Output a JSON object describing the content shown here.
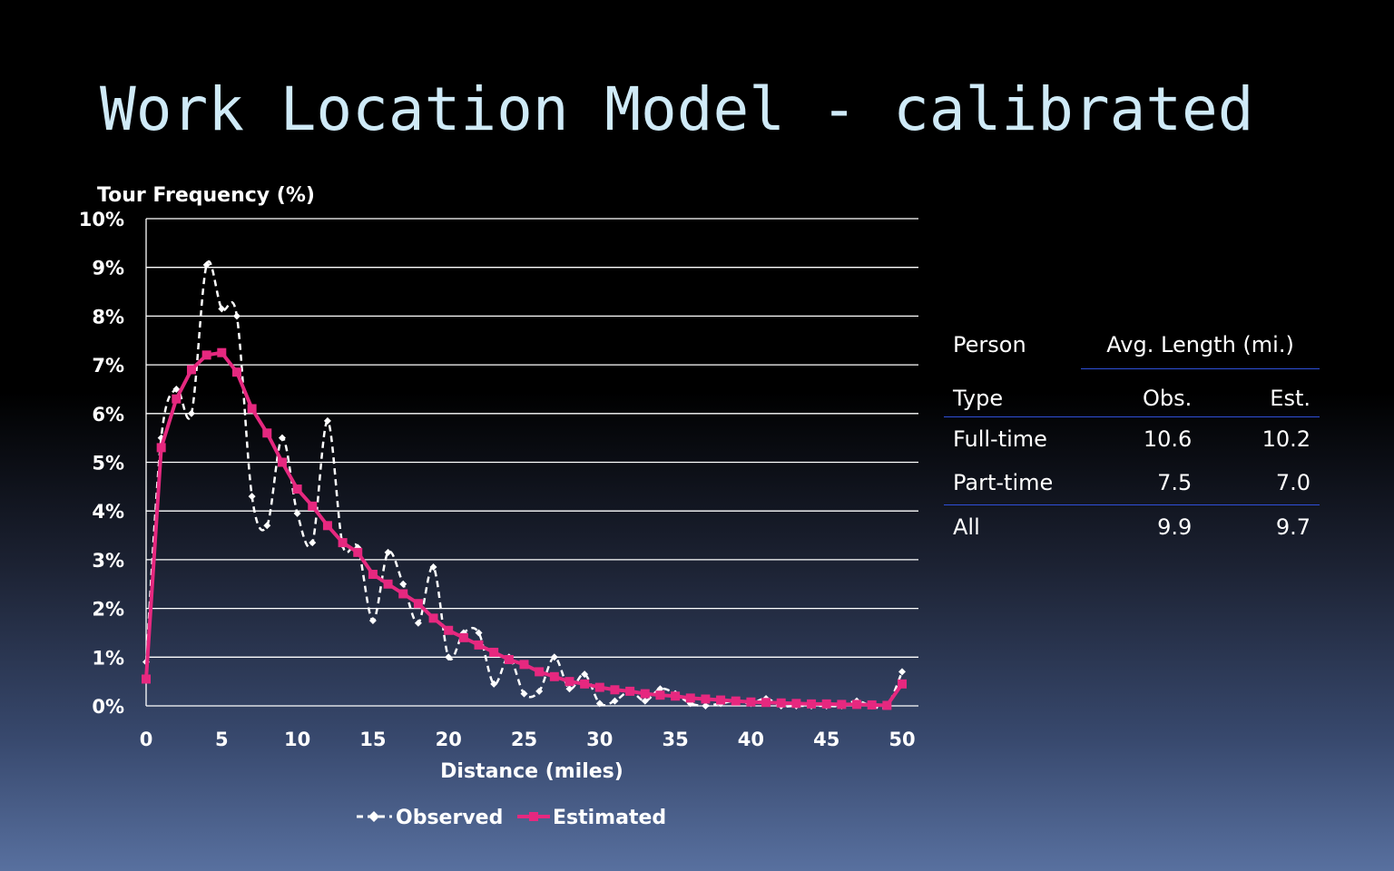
{
  "slide": {
    "title": "Work Location Model - calibrated"
  },
  "chart_data": {
    "type": "line",
    "ylabel": "Tour Frequency (%)",
    "xlabel": "Distance (miles)",
    "xlim": [
      0,
      50
    ],
    "ylim": [
      0,
      10
    ],
    "x_ticks": [
      0,
      5,
      10,
      15,
      20,
      25,
      30,
      35,
      40,
      45,
      50
    ],
    "y_ticks": [
      0,
      1,
      2,
      3,
      4,
      5,
      6,
      7,
      8,
      9,
      10
    ],
    "y_tick_labels": [
      "0%",
      "1%",
      "2%",
      "3%",
      "4%",
      "5%",
      "6%",
      "7%",
      "8%",
      "9%",
      "10%"
    ],
    "grid": "horizontal",
    "legend_position": "bottom",
    "x": [
      0,
      1,
      2,
      3,
      4,
      5,
      6,
      7,
      8,
      9,
      10,
      11,
      12,
      13,
      14,
      15,
      16,
      17,
      18,
      19,
      20,
      21,
      22,
      23,
      24,
      25,
      26,
      27,
      28,
      29,
      30,
      31,
      32,
      33,
      34,
      35,
      36,
      37,
      38,
      39,
      40,
      41,
      42,
      43,
      44,
      45,
      46,
      47,
      48,
      49,
      50
    ],
    "series": [
      {
        "name": "Observed",
        "color": "#ffffff",
        "style": "dashed",
        "marker": "diamond",
        "values": [
          0.9,
          5.5,
          6.5,
          6.0,
          9.05,
          8.15,
          8.0,
          4.3,
          3.7,
          5.5,
          3.95,
          3.35,
          5.85,
          3.3,
          3.25,
          1.75,
          3.15,
          2.5,
          1.7,
          2.85,
          1.0,
          1.5,
          1.5,
          0.45,
          1.0,
          0.25,
          0.3,
          1.0,
          0.35,
          0.65,
          0.05,
          0.1,
          0.3,
          0.1,
          0.35,
          0.25,
          0.05,
          0.0,
          0.05,
          0.1,
          0.05,
          0.15,
          0.0,
          0.0,
          0.0,
          0.0,
          0.0,
          0.1,
          0.0,
          0.0,
          0.7
        ]
      },
      {
        "name": "Estimated",
        "color": "#e6287f",
        "style": "solid",
        "marker": "square",
        "values": [
          0.55,
          5.3,
          6.3,
          6.9,
          7.2,
          7.25,
          6.85,
          6.1,
          5.6,
          5.0,
          4.45,
          4.1,
          3.7,
          3.35,
          3.15,
          2.7,
          2.5,
          2.3,
          2.1,
          1.8,
          1.55,
          1.4,
          1.25,
          1.1,
          0.95,
          0.85,
          0.7,
          0.6,
          0.5,
          0.45,
          0.38,
          0.33,
          0.3,
          0.25,
          0.22,
          0.2,
          0.16,
          0.14,
          0.12,
          0.1,
          0.08,
          0.07,
          0.06,
          0.05,
          0.04,
          0.04,
          0.03,
          0.03,
          0.02,
          0.01,
          0.45
        ]
      }
    ]
  },
  "table": {
    "person_label": "Person",
    "type_label": "Type",
    "group_header": "Avg. Length (mi.)",
    "obs_header": "Obs.",
    "est_header": "Est.",
    "rows": [
      {
        "label": "Full-time",
        "obs": "10.6",
        "est": "10.2"
      },
      {
        "label": "Part-time",
        "obs": "7.5",
        "est": "7.0"
      },
      {
        "label": "All",
        "obs": "9.9",
        "est": "9.7"
      }
    ]
  }
}
